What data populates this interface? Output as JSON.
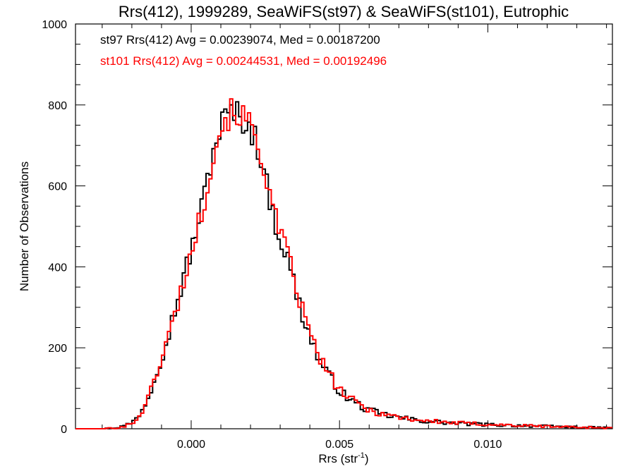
{
  "chart_data": {
    "type": "histogram-step",
    "title": "Rrs(412), 1999289, SeaWiFS(st97) & SeaWiFS(st101), Eutrophic",
    "xlabel_main": "Rrs (str",
    "xlabel_sup": "-1",
    "xlabel_close": ")",
    "ylabel": "Number of Observations",
    "xlim": [
      -0.0039,
      0.0142
    ],
    "ylim": [
      0,
      1000
    ],
    "x_ticks": [
      0.0,
      0.005,
      0.01
    ],
    "x_tick_labels": [
      "0.000",
      "0.005",
      "0.010"
    ],
    "y_ticks": [
      0,
      200,
      400,
      600,
      800,
      1000
    ],
    "y_tick_labels": [
      "0",
      "200",
      "400",
      "600",
      "800",
      "1000"
    ],
    "grid": false,
    "annotations": [
      {
        "text": "st97 Rrs(412) Avg = 0.00239074, Med = 0.00187200",
        "color": "#000000"
      },
      {
        "text": "st101 Rrs(412) Avg = 0.00244531, Med = 0.00192496",
        "color": "#ff0000"
      }
    ],
    "bin_width": 0.0001,
    "series": [
      {
        "color": "#000000",
        "profile": {
          "x": [
            -0.0039,
            -0.003,
            -0.0026,
            -0.0023,
            -0.002,
            -0.0018,
            -0.0016,
            -0.0014,
            -0.0012,
            -0.001,
            -0.0008,
            -0.0006,
            -0.0004,
            -0.0002,
            0.0,
            0.0002,
            0.0004,
            0.0006,
            0.0008,
            0.001,
            0.0012,
            0.0014,
            0.0016,
            0.0018,
            0.002,
            0.0022,
            0.0024,
            0.0026,
            0.0028,
            0.003,
            0.0032,
            0.0034,
            0.0036,
            0.0038,
            0.004,
            0.0042,
            0.0044,
            0.0046,
            0.0048,
            0.005,
            0.0052,
            0.0055,
            0.006,
            0.0065,
            0.007,
            0.0075,
            0.008,
            0.009,
            0.01,
            0.011,
            0.012,
            0.013,
            0.0142
          ],
          "y": [
            0,
            0,
            2,
            6,
            15,
            30,
            55,
            85,
            140,
            175,
            225,
            280,
            330,
            390,
            440,
            500,
            560,
            640,
            700,
            750,
            775,
            780,
            775,
            760,
            740,
            710,
            660,
            580,
            520,
            470,
            430,
            380,
            320,
            270,
            230,
            190,
            160,
            135,
            115,
            95,
            80,
            65,
            45,
            35,
            28,
            22,
            18,
            13,
            10,
            8,
            6,
            4,
            2
          ]
        },
        "noise_seed": 97
      },
      {
        "color": "#ff0000",
        "profile": {
          "x": [
            -0.0039,
            -0.003,
            -0.0026,
            -0.0023,
            -0.002,
            -0.0018,
            -0.0016,
            -0.0014,
            -0.0012,
            -0.001,
            -0.0008,
            -0.0006,
            -0.0004,
            -0.0002,
            0.0,
            0.0002,
            0.0004,
            0.0006,
            0.0008,
            0.001,
            0.0012,
            0.0014,
            0.0016,
            0.0018,
            0.002,
            0.0022,
            0.0024,
            0.0026,
            0.0028,
            0.003,
            0.0032,
            0.0034,
            0.0036,
            0.0038,
            0.004,
            0.0042,
            0.0044,
            0.0046,
            0.0048,
            0.005,
            0.0052,
            0.0055,
            0.006,
            0.0065,
            0.007,
            0.0075,
            0.008,
            0.009,
            0.01,
            0.011,
            0.012,
            0.013,
            0.0142
          ],
          "y": [
            0,
            0,
            2,
            5,
            13,
            27,
            52,
            82,
            135,
            170,
            220,
            272,
            322,
            382,
            432,
            492,
            550,
            630,
            692,
            745,
            770,
            782,
            780,
            765,
            748,
            718,
            670,
            590,
            528,
            480,
            440,
            392,
            332,
            280,
            238,
            197,
            165,
            140,
            118,
            97,
            82,
            67,
            46,
            36,
            29,
            23,
            19,
            14,
            11,
            8,
            6,
            4,
            2
          ]
        },
        "noise_seed": 101
      }
    ]
  }
}
